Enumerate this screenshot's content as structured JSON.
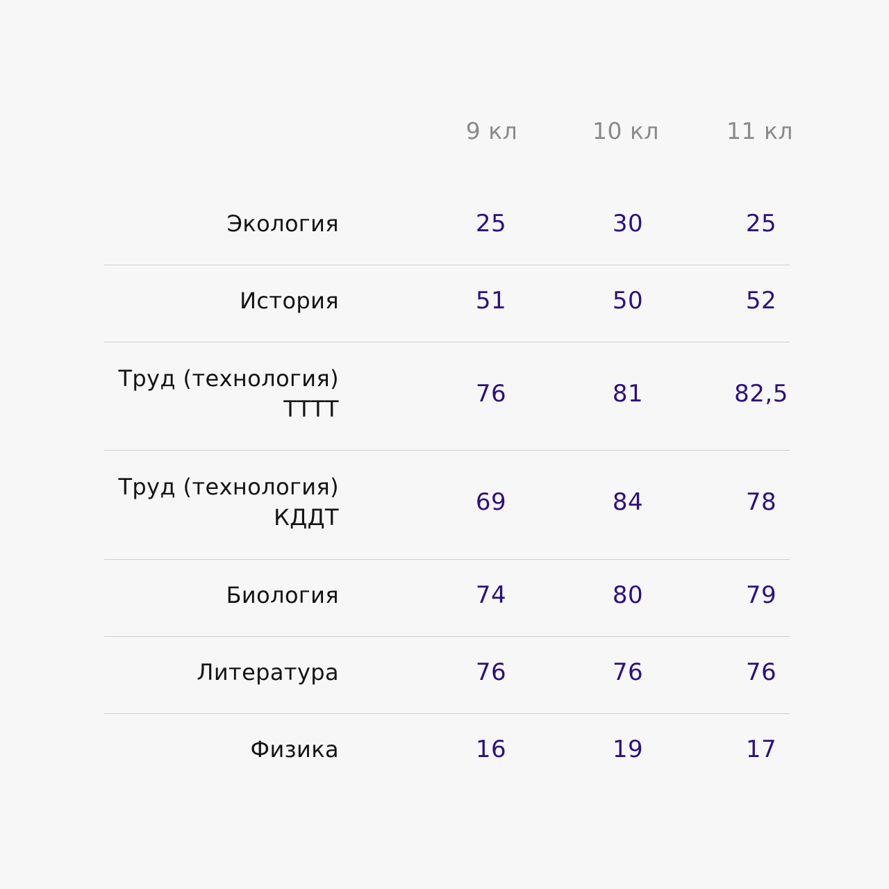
{
  "table": {
    "columns": [
      "9 кл",
      "10 кл",
      "11 кл"
    ],
    "rows": [
      {
        "subject": [
          "Экология"
        ],
        "values": [
          "25",
          "30",
          "25"
        ]
      },
      {
        "subject": [
          "История"
        ],
        "values": [
          "51",
          "50",
          "52"
        ]
      },
      {
        "subject": [
          "Труд (технология)",
          "ТТТТ"
        ],
        "values": [
          "76",
          "81",
          "82,5"
        ]
      },
      {
        "subject": [
          "Труд (технология)",
          "КДДТ"
        ],
        "values": [
          "69",
          "84",
          "78"
        ]
      },
      {
        "subject": [
          "Биология"
        ],
        "values": [
          "74",
          "80",
          "79"
        ]
      },
      {
        "subject": [
          "Литература"
        ],
        "values": [
          "76",
          "76",
          "76"
        ]
      },
      {
        "subject": [
          "Физика"
        ],
        "values": [
          "16",
          "19",
          "17"
        ]
      }
    ]
  },
  "colors": {
    "background": "#f7f7f7",
    "header_text": "#8a8a8a",
    "subject_text": "#141414",
    "value_text": "#2d0f82",
    "divider": "#cfcfcf"
  }
}
